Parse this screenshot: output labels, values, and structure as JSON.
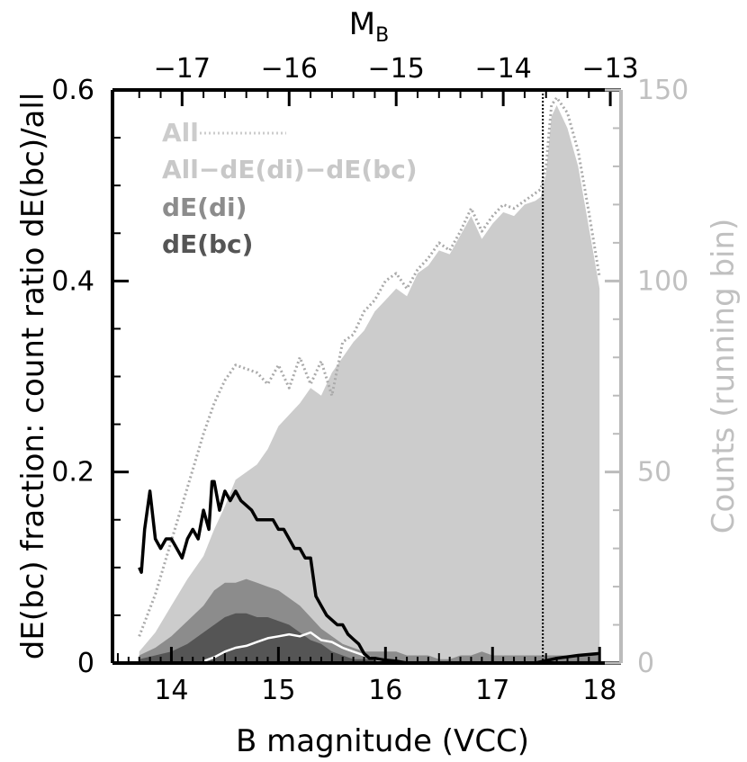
{
  "chart_data": {
    "type": "area",
    "xlabel": "B magnitude (VCC)",
    "ylabel": "dE(bc) fraction: count ratio dE(bc)/all",
    "y2label": "Counts (running bin)",
    "top_axis_label_main": "M",
    "top_axis_label_sub": "B",
    "xlim": [
      13.45,
      18.2
    ],
    "ylim": [
      0,
      0.6
    ],
    "y2lim": [
      0,
      150
    ],
    "x_ticks": [
      14,
      15,
      16,
      17,
      18
    ],
    "x_tick_labels": [
      "14",
      "15",
      "16",
      "17",
      "18"
    ],
    "y_ticks": [
      0,
      0.2,
      0.4,
      0.6
    ],
    "y_tick_labels": [
      "0",
      "0.2",
      "0.4",
      "0.6"
    ],
    "y2_ticks": [
      0,
      50,
      100,
      150
    ],
    "y2_tick_labels": [
      "0",
      "50",
      "100",
      "150"
    ],
    "top_ticks": [
      -17,
      -16,
      -15,
      -14,
      -13
    ],
    "top_tick_labels": [
      "−17",
      "−16",
      "−15",
      "−14",
      "−13"
    ],
    "top_axis_offset": 31.1,
    "vertical_line_x": 17.47,
    "legend": [
      {
        "label": "All",
        "color": "#cccccc",
        "style": "dotted"
      },
      {
        "label": "All−dE(di)−dE(bc)",
        "color": "#c8c8c8"
      },
      {
        "label": "dE(di)",
        "color": "#8c8c8c"
      },
      {
        "label": "dE(bc)",
        "color": "#555555"
      }
    ],
    "series": [
      {
        "name": "All",
        "axis": "counts",
        "style": "dotted",
        "color": "#aaaaaa",
        "x": [
          13.7,
          13.85,
          14.0,
          14.15,
          14.3,
          14.4,
          14.5,
          14.6,
          14.7,
          14.8,
          14.9,
          15.0,
          15.1,
          15.2,
          15.3,
          15.4,
          15.5,
          15.6,
          15.7,
          15.8,
          15.9,
          16.0,
          16.1,
          16.2,
          16.3,
          16.4,
          16.5,
          16.6,
          16.7,
          16.8,
          16.9,
          17.0,
          17.1,
          17.2,
          17.3,
          17.4,
          17.45,
          17.5,
          17.55,
          17.6,
          17.7,
          17.8,
          17.9,
          18.0
        ],
        "y": [
          7,
          18,
          32,
          46,
          60,
          68,
          74,
          78,
          77,
          76,
          73,
          78,
          72,
          80,
          73,
          79,
          70,
          84,
          86,
          92,
          95,
          100,
          102,
          98,
          103,
          106,
          110,
          108,
          113,
          119,
          113,
          117,
          120,
          119,
          121,
          123,
          124,
          130,
          146,
          148,
          144,
          134,
          118,
          101
        ]
      },
      {
        "name": "All−dE(di)−dE(bc)",
        "axis": "counts",
        "style": "filled",
        "color": "#cccccc",
        "x": [
          13.7,
          13.85,
          14.0,
          14.15,
          14.3,
          14.4,
          14.5,
          14.6,
          14.7,
          14.8,
          14.9,
          15.0,
          15.1,
          15.2,
          15.3,
          15.4,
          15.5,
          15.6,
          15.7,
          15.8,
          15.9,
          16.0,
          16.1,
          16.2,
          16.3,
          16.4,
          16.5,
          16.6,
          16.7,
          16.8,
          16.9,
          17.0,
          17.1,
          17.2,
          17.3,
          17.4,
          17.45,
          17.5,
          17.55,
          17.6,
          17.7,
          17.8,
          17.9,
          18.0
        ],
        "y": [
          3,
          8,
          15,
          22,
          28,
          35,
          41,
          48,
          50,
          52,
          56,
          62,
          65,
          68,
          72,
          70,
          76,
          80,
          84,
          87,
          92,
          95,
          98,
          96,
          102,
          104,
          108,
          107,
          112,
          117,
          111,
          115,
          118,
          117,
          120,
          121,
          122,
          128,
          143,
          146,
          140,
          130,
          114,
          98
        ]
      },
      {
        "name": "dE(di)",
        "axis": "counts",
        "style": "filled",
        "color": "#8c8c8c",
        "x": [
          13.7,
          13.85,
          14.0,
          14.15,
          14.3,
          14.4,
          14.5,
          14.6,
          14.7,
          14.8,
          14.9,
          15.0,
          15.1,
          15.2,
          15.3,
          15.4,
          15.5,
          15.6,
          15.7,
          15.8,
          15.9,
          16.0,
          16.1,
          16.2,
          16.3,
          16.4,
          16.5,
          16.6,
          16.7,
          16.8,
          16.9,
          17.0,
          17.1,
          17.2,
          17.3,
          17.4,
          17.5,
          17.6,
          17.7,
          17.8,
          17.9,
          18.0
        ],
        "y": [
          2,
          4,
          7,
          11,
          15,
          19,
          21,
          21,
          22,
          21,
          20,
          19,
          17,
          15,
          12,
          9,
          7,
          5,
          4,
          3,
          3,
          3,
          3,
          2,
          2,
          2,
          1,
          1,
          2,
          2,
          3,
          2,
          2,
          2,
          2,
          2,
          2,
          2,
          2,
          2,
          2,
          2
        ]
      },
      {
        "name": "dE(bc)",
        "axis": "counts",
        "style": "filled",
        "color": "#555555",
        "x": [
          13.7,
          13.85,
          14.0,
          14.15,
          14.3,
          14.4,
          14.5,
          14.6,
          14.7,
          14.8,
          14.9,
          15.0,
          15.1,
          15.2,
          15.3,
          15.4,
          15.5,
          15.6,
          15.7,
          15.8,
          15.9,
          16.0,
          16.1,
          16.2,
          16.3,
          16.4,
          16.5,
          16.6,
          16.7,
          16.8,
          16.9,
          17.0,
          17.1,
          17.2,
          17.3,
          17.4,
          17.5,
          17.6,
          17.7,
          17.8,
          17.9,
          18.0
        ],
        "y": [
          1,
          2,
          3,
          5,
          8,
          10,
          12,
          13,
          13,
          12,
          12,
          11,
          10,
          8,
          6,
          5,
          3,
          2,
          1,
          1,
          1,
          0.5,
          0.5,
          0.5,
          0.5,
          0.5,
          0.5,
          0.5,
          0.5,
          0.5,
          0.5,
          0.5,
          0.5,
          0.5,
          0.5,
          0.5,
          0.5,
          0.5,
          0.5,
          0.5,
          0.5,
          0.5
        ]
      },
      {
        "name": "",
        "axis": "counts",
        "style": "line",
        "color": "#ffffff",
        "x": [
          14.3,
          14.4,
          14.5,
          14.6,
          14.7,
          14.8,
          14.9,
          15.0,
          15.1,
          15.2,
          15.3,
          15.4,
          15.5,
          15.6,
          15.7,
          15.8,
          15.9,
          16.0
        ],
        "y": [
          0.5,
          1.5,
          3,
          4,
          4.5,
          5.5,
          6.5,
          7,
          7.5,
          7,
          8,
          6,
          5.5,
          4,
          3,
          2,
          1,
          0.5
        ]
      },
      {
        "name": "",
        "axis": "fraction",
        "style": "line",
        "color": "#000000",
        "x": [
          13.7,
          13.72,
          13.75,
          13.8,
          13.85,
          13.9,
          13.95,
          14.0,
          14.05,
          14.1,
          14.15,
          14.2,
          14.25,
          14.3,
          14.35,
          14.38,
          14.4,
          14.45,
          14.5,
          14.55,
          14.6,
          14.65,
          14.7,
          14.75,
          14.8,
          14.85,
          14.9,
          14.95,
          15.0,
          15.05,
          15.1,
          15.15,
          15.2,
          15.25,
          15.3,
          15.35,
          15.4,
          15.45,
          15.5,
          15.55,
          15.6,
          15.65,
          15.7,
          15.75,
          15.8,
          15.85,
          15.9,
          15.95,
          16.0,
          16.1,
          16.2,
          16.4,
          16.6,
          16.8,
          17.0,
          17.2,
          17.4,
          17.6,
          17.8,
          18.0
        ],
        "y": [
          0.1,
          0.095,
          0.14,
          0.18,
          0.13,
          0.12,
          0.13,
          0.13,
          0.12,
          0.11,
          0.13,
          0.14,
          0.13,
          0.16,
          0.14,
          0.19,
          0.19,
          0.16,
          0.18,
          0.17,
          0.18,
          0.17,
          0.165,
          0.16,
          0.15,
          0.15,
          0.15,
          0.15,
          0.14,
          0.14,
          0.13,
          0.12,
          0.12,
          0.11,
          0.11,
          0.07,
          0.06,
          0.05,
          0.045,
          0.04,
          0.04,
          0.03,
          0.025,
          0.02,
          0.01,
          0.005,
          0.005,
          0.004,
          0.003,
          0.002,
          0,
          0,
          0,
          0,
          0,
          0,
          0,
          0.005,
          0.008,
          0.01
        ]
      }
    ]
  }
}
